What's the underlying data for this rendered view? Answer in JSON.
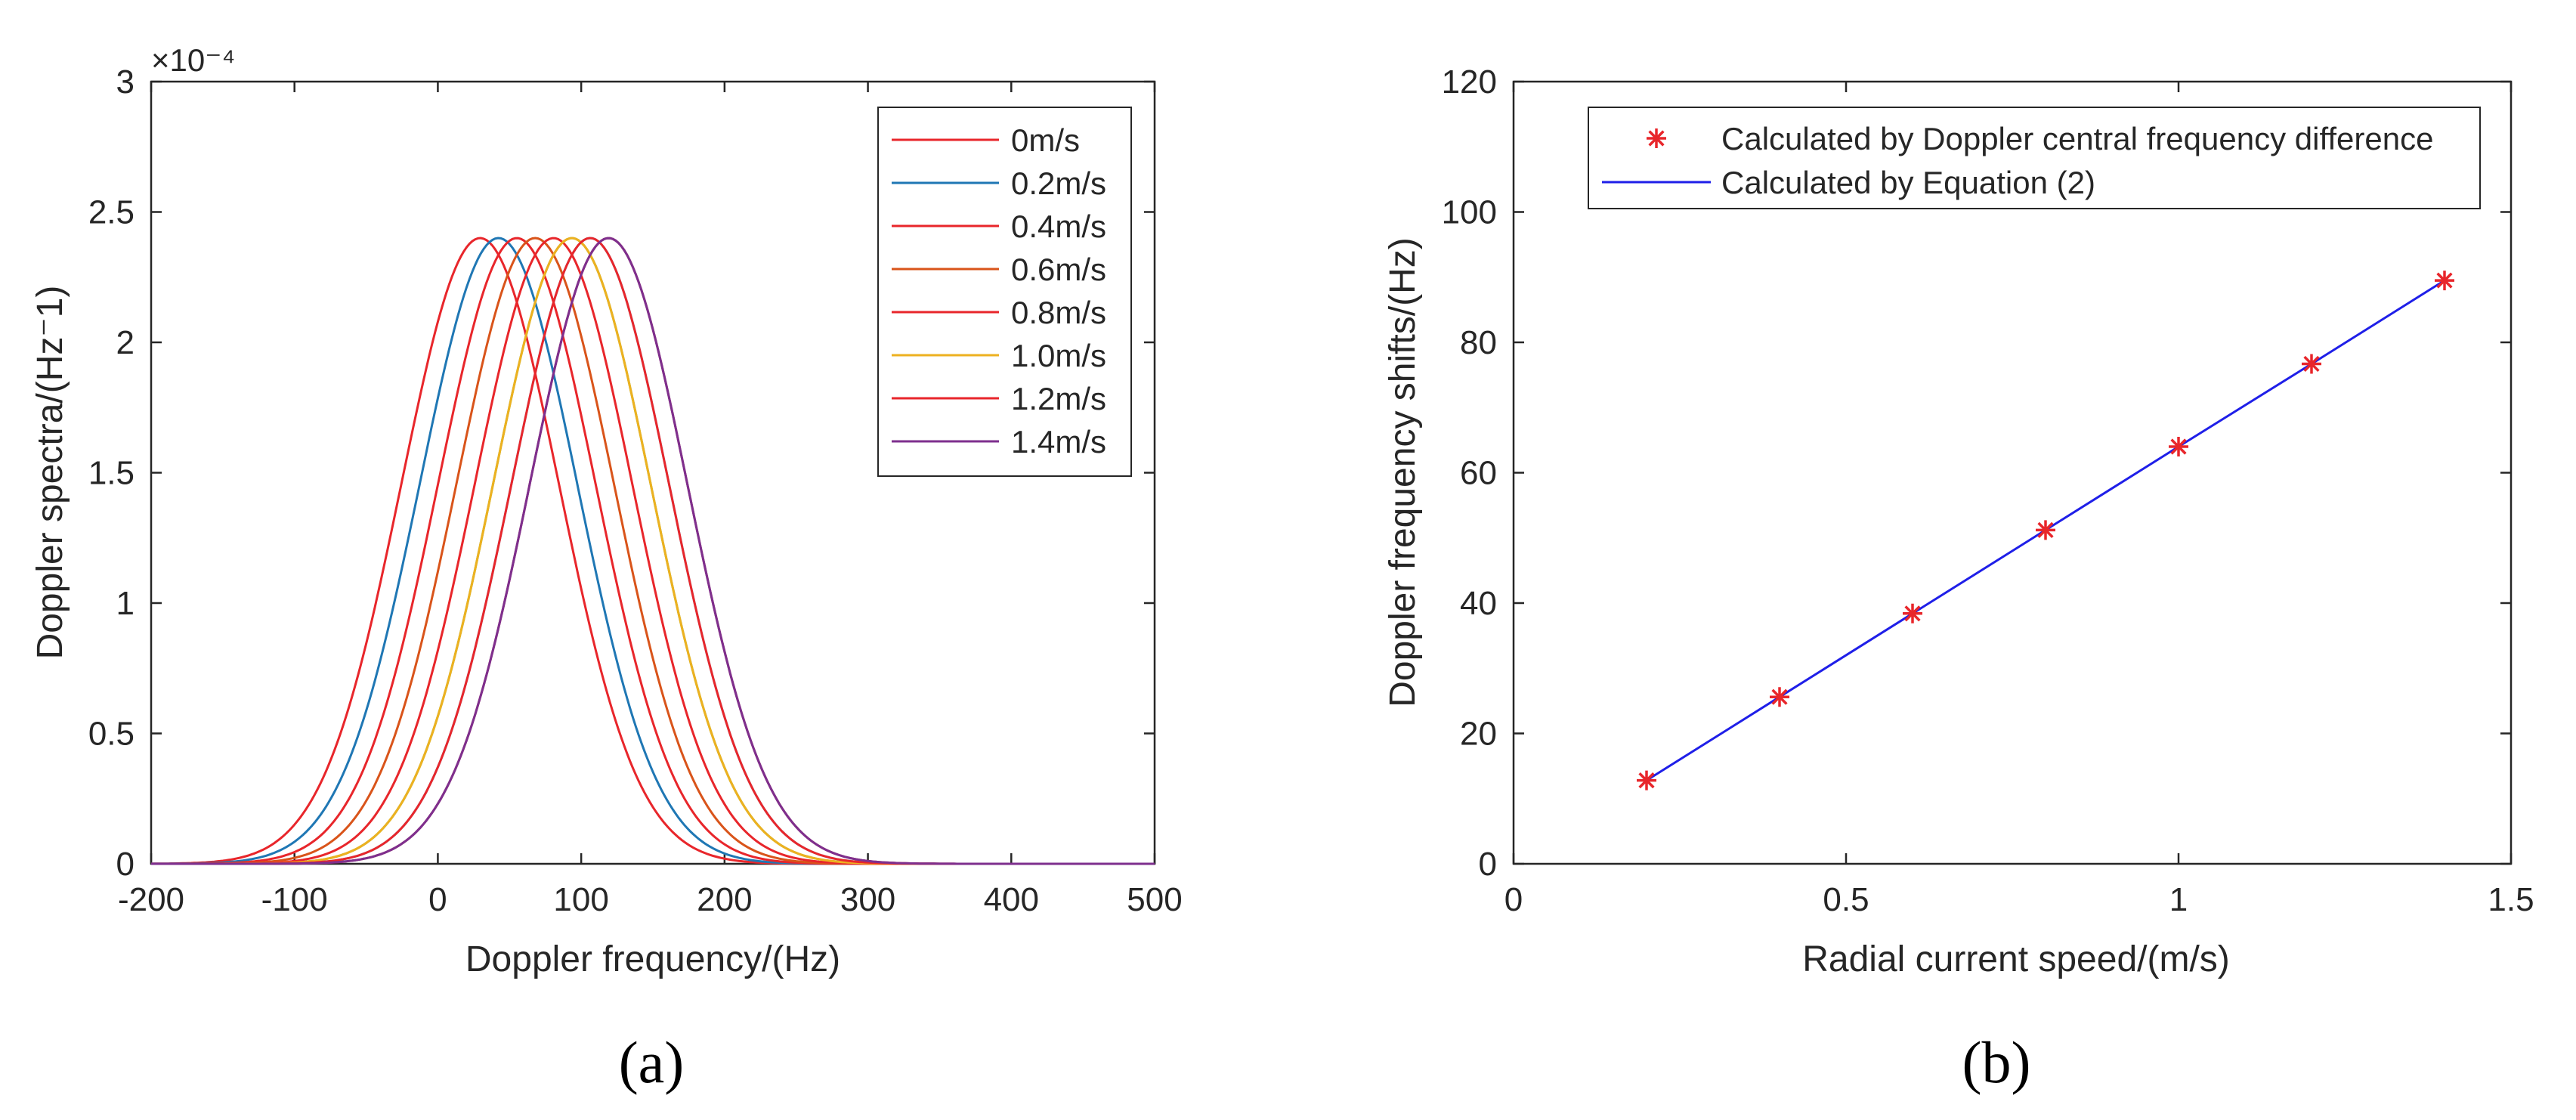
{
  "chart_data": [
    {
      "type": "line",
      "panel_label": "(a)",
      "xlabel": "Doppler frequency/(Hz)",
      "ylabel": "Doppler spectra/(Hz⁻1)",
      "y_exponent": "×10⁻⁴",
      "xlim": [
        -200,
        500
      ],
      "ylim": [
        0,
        3
      ],
      "x_ticks": [
        "-200",
        "-100",
        "0",
        "100",
        "200",
        "300",
        "400",
        "500"
      ],
      "y_ticks": [
        "0",
        "0.5",
        "1",
        "1.5",
        "2",
        "2.5",
        "3"
      ],
      "legend_position": "top-right",
      "curve_shape": {
        "peak": 2.4,
        "sigma_hz": 55
      },
      "series": [
        {
          "name": "0m/s",
          "center": 29.5,
          "color": "#e8262b"
        },
        {
          "name": "0.2m/s",
          "center": 42.3,
          "color": "#1f77b4"
        },
        {
          "name": "0.4m/s",
          "center": 55.1,
          "color": "#e8262b"
        },
        {
          "name": "0.6m/s",
          "center": 67.9,
          "color": "#d9541a"
        },
        {
          "name": "0.8m/s",
          "center": 80.7,
          "color": "#e8262b"
        },
        {
          "name": "1.0m/s",
          "center": 93.5,
          "color": "#edb120"
        },
        {
          "name": "1.2m/s",
          "center": 106.3,
          "color": "#e8262b"
        },
        {
          "name": "1.4m/s",
          "center": 119.1,
          "color": "#7e2f8e"
        }
      ],
      "unlabeled_series": [
        {
          "center": 93.5,
          "color": "#77ac30"
        },
        {
          "center": 106.3,
          "color": "#4dbeee"
        },
        {
          "center": 119.1,
          "color": "#a2142f"
        }
      ]
    },
    {
      "type": "scatter",
      "panel_label": "(b)",
      "xlabel": "Radial current speed/(m/s)",
      "ylabel": "Doppler frequency shifts/(Hz)",
      "xlim": [
        0,
        1.5
      ],
      "ylim": [
        0,
        120
      ],
      "x_ticks": [
        "0",
        "0.5",
        "1",
        "1.5"
      ],
      "y_ticks": [
        "0",
        "20",
        "40",
        "60",
        "80",
        "100",
        "120"
      ],
      "legend_position": "top",
      "series": [
        {
          "name": "Calculated by Doppler central frequency difference",
          "marker": "asterisk",
          "color": "#e8262b",
          "x": [
            0.2,
            0.4,
            0.6,
            0.8,
            1.0,
            1.2,
            1.4
          ],
          "y": [
            12.8,
            25.6,
            38.4,
            51.2,
            64.0,
            76.7,
            89.5
          ]
        },
        {
          "name": "Calculated by Equation (2)",
          "marker": "line",
          "color": "#1f1fe8",
          "x": [
            0.2,
            0.4,
            0.6,
            0.8,
            1.0,
            1.2,
            1.4
          ],
          "y": [
            12.8,
            25.6,
            38.4,
            51.2,
            64.0,
            76.7,
            89.5
          ]
        }
      ]
    }
  ]
}
